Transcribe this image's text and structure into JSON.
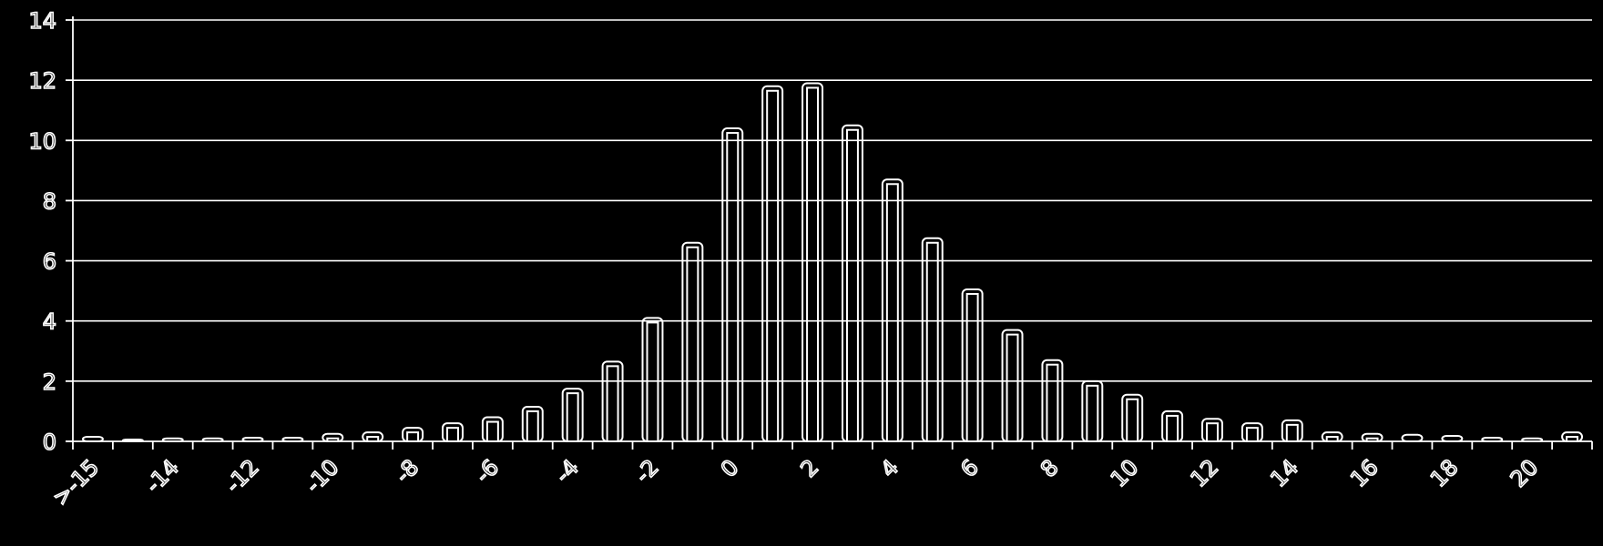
{
  "chart_data": {
    "type": "bar",
    "title": "",
    "xlabel": "",
    "ylabel": "",
    "ylim": [
      0,
      14
    ],
    "yticks": [
      "0",
      "2",
      "4",
      "6",
      "8",
      "10",
      "12",
      "14"
    ],
    "grid": true,
    "categories": [
      ">-15",
      "-15",
      "-14",
      "-13",
      "-12",
      "-11",
      "-10",
      "-9",
      "-8",
      "-7",
      "-6",
      "-5",
      "-4",
      "-3",
      "-2",
      "-1",
      "0",
      "1",
      "2",
      "3",
      "4",
      "5",
      "6",
      "7",
      "8",
      "9",
      "10",
      "11",
      "12",
      "13",
      "14",
      "15",
      "16",
      "17",
      "18",
      "19",
      "20",
      ">20"
    ],
    "xtick_labels": [
      {
        "index": 0,
        "label": ">-15"
      },
      {
        "index": 2,
        "label": "-14"
      },
      {
        "index": 4,
        "label": "-12"
      },
      {
        "index": 6,
        "label": "-10"
      },
      {
        "index": 8,
        "label": "-8"
      },
      {
        "index": 10,
        "label": "-6"
      },
      {
        "index": 12,
        "label": "-4"
      },
      {
        "index": 14,
        "label": "-2"
      },
      {
        "index": 16,
        "label": "0"
      },
      {
        "index": 18,
        "label": "2"
      },
      {
        "index": 20,
        "label": "4"
      },
      {
        "index": 22,
        "label": "6"
      },
      {
        "index": 24,
        "label": "8"
      },
      {
        "index": 26,
        "label": "10"
      },
      {
        "index": 28,
        "label": "12"
      },
      {
        "index": 30,
        "label": "14"
      },
      {
        "index": 32,
        "label": "16"
      },
      {
        "index": 34,
        "label": "18"
      },
      {
        "index": 36,
        "label": "20"
      }
    ],
    "values": [
      0.15,
      0.05,
      0.1,
      0.1,
      0.12,
      0.12,
      0.25,
      0.3,
      0.45,
      0.6,
      0.8,
      1.15,
      1.75,
      2.65,
      4.1,
      6.6,
      10.4,
      11.8,
      11.9,
      10.5,
      8.7,
      6.75,
      5.05,
      3.7,
      2.7,
      2.0,
      1.55,
      1.0,
      0.75,
      0.6,
      0.7,
      0.3,
      0.25,
      0.22,
      0.18,
      0.12,
      0.1,
      0.3
    ]
  }
}
